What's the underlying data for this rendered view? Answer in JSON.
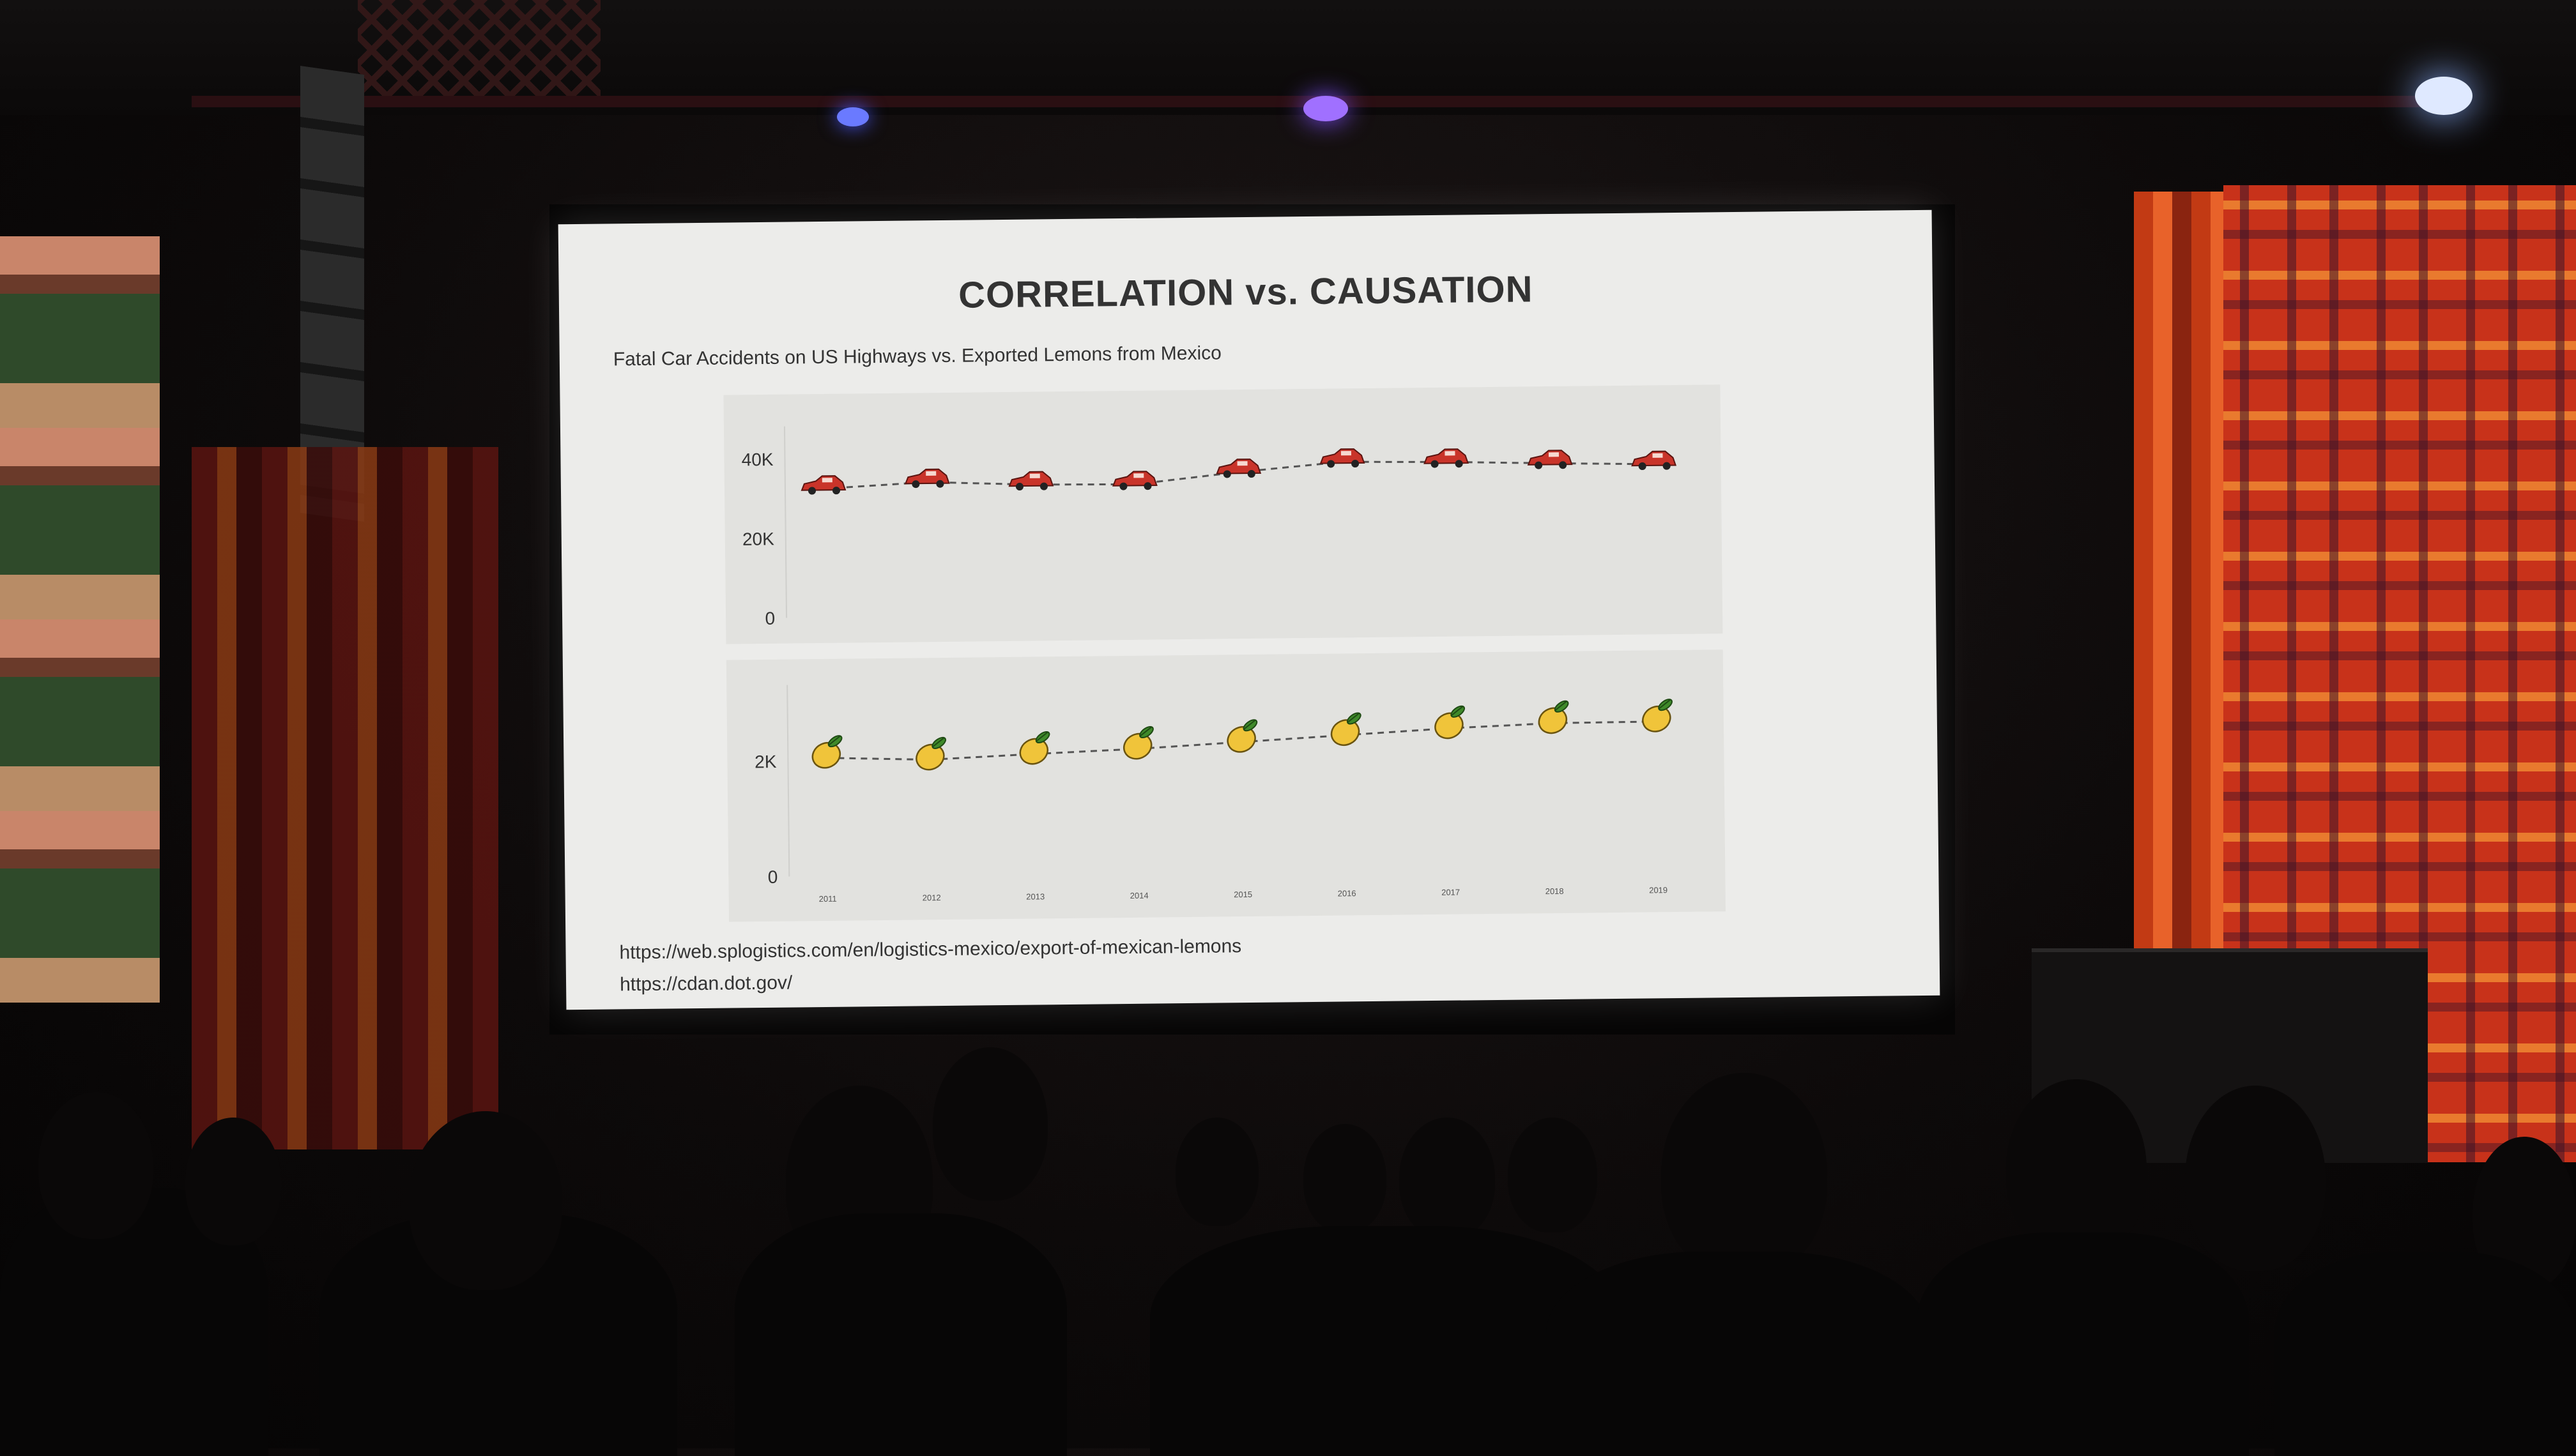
{
  "slide": {
    "title": "CORRELATION vs. CAUSATION",
    "subtitle": "Fatal Car Accidents on US Highways vs. Exported Lemons from Mexico",
    "sources": [
      "https://web.splogistics.com/en/logistics-mexico/export-of-mexican-lemons",
      "https://cdan.dot.gov/"
    ]
  },
  "chart_data": [
    {
      "type": "line",
      "marker": "car",
      "x": [
        2011,
        2012,
        2013,
        2014,
        2015,
        2016,
        2017,
        2018,
        2019
      ],
      "series": [
        {
          "values": [
            32400,
            33800,
            32900,
            32700,
            35500,
            37800,
            37500,
            36900,
            36400
          ]
        }
      ],
      "ylim": [
        0,
        45000
      ],
      "yticks": [
        0,
        20000,
        40000
      ],
      "ytick_labels": [
        "0",
        "20K",
        "40K"
      ],
      "colors": {
        "marker": "#c9342a",
        "line": "#555555",
        "background": "#e2e2df"
      },
      "grid": false
    },
    {
      "type": "line",
      "marker": "lemon",
      "x": [
        2011,
        2012,
        2013,
        2014,
        2015,
        2016,
        2017,
        2018,
        2019
      ],
      "xtick_labels": [
        "2011",
        "2012",
        "2013",
        "2014",
        "2015",
        "2016",
        "2017",
        "2018",
        "2019"
      ],
      "series": [
        {
          "values": [
            2050,
            2000,
            2080,
            2150,
            2250,
            2350,
            2450,
            2520,
            2530
          ]
        }
      ],
      "ylim": [
        0,
        3100
      ],
      "yticks": [
        0,
        2000
      ],
      "ytick_labels": [
        "0",
        "2K"
      ],
      "colors": {
        "marker": "#f0c43a",
        "leaf": "#3f8a2a",
        "line": "#555555",
        "background": "#e2e2df"
      },
      "grid": false
    }
  ]
}
